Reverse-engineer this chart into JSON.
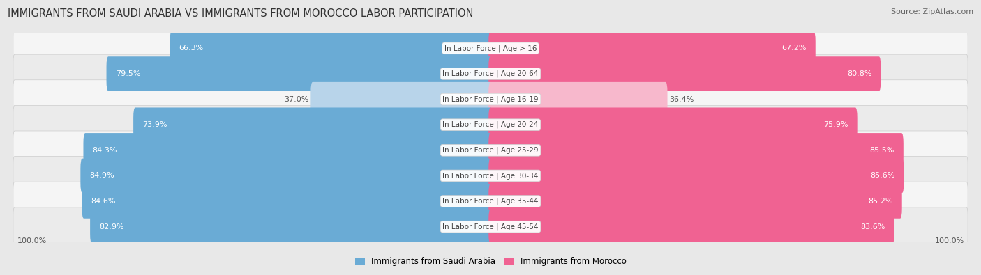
{
  "title": "IMMIGRANTS FROM SAUDI ARABIA VS IMMIGRANTS FROM MOROCCO LABOR PARTICIPATION",
  "source": "Source: ZipAtlas.com",
  "categories": [
    "In Labor Force | Age > 16",
    "In Labor Force | Age 20-64",
    "In Labor Force | Age 16-19",
    "In Labor Force | Age 20-24",
    "In Labor Force | Age 25-29",
    "In Labor Force | Age 30-34",
    "In Labor Force | Age 35-44",
    "In Labor Force | Age 45-54"
  ],
  "saudi_values": [
    66.3,
    79.5,
    37.0,
    73.9,
    84.3,
    84.9,
    84.6,
    82.9
  ],
  "morocco_values": [
    67.2,
    80.8,
    36.4,
    75.9,
    85.5,
    85.6,
    85.2,
    83.6
  ],
  "saudi_color_high": "#6aabd5",
  "saudi_color_low": "#b8d4ea",
  "morocco_color_high": "#f06292",
  "morocco_color_low": "#f7b8cc",
  "bg_color": "#e8e8e8",
  "row_bg": "#f5f5f5",
  "row_bg_alt": "#ebebeb",
  "label_white": "#ffffff",
  "label_dark": "#555555",
  "legend_saudi": "Immigrants from Saudi Arabia",
  "legend_morocco": "Immigrants from Morocco",
  "high_threshold": 50.0,
  "title_fontsize": 10.5,
  "source_fontsize": 8,
  "bar_label_fontsize": 8,
  "category_fontsize": 7.5,
  "legend_fontsize": 8.5,
  "bottom_label": "100.0%"
}
